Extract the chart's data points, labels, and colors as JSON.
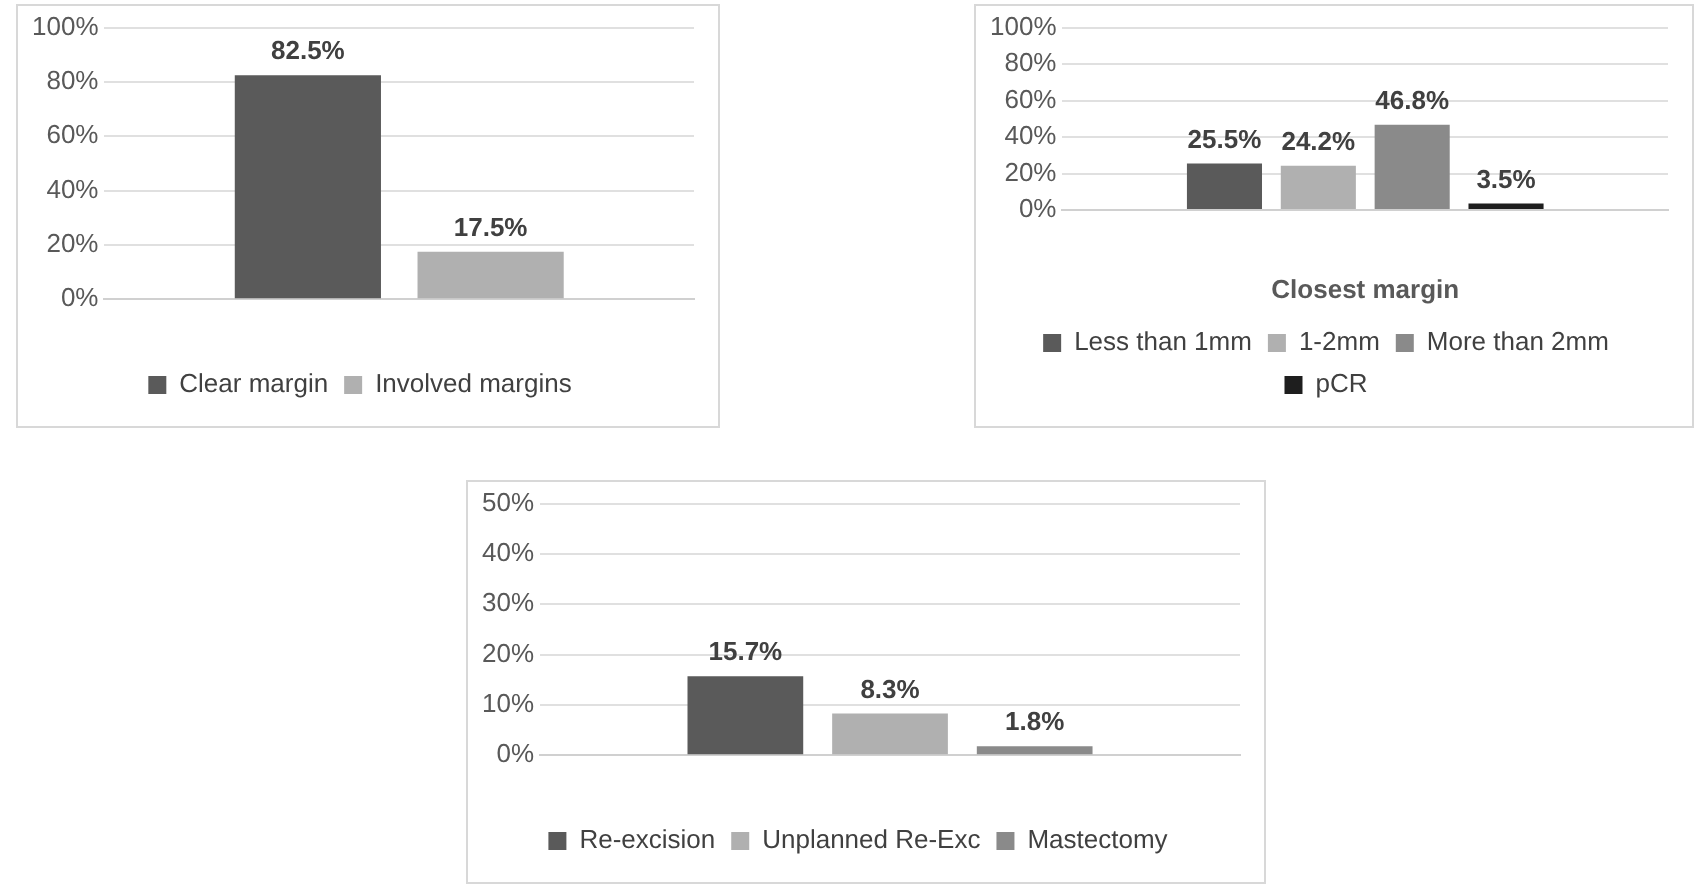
{
  "chart_data": [
    {
      "type": "bar",
      "categories": [
        null
      ],
      "series": [
        {
          "name": "Clear margin",
          "color": "#5a5a5a",
          "values": [
            82.5
          ],
          "value_labels": [
            "82.5%"
          ]
        },
        {
          "name": "Involved margins",
          "color": "#b0b0b0",
          "values": [
            17.5
          ],
          "value_labels": [
            "17.5%"
          ]
        }
      ],
      "ylim": [
        0,
        100
      ],
      "yticks": [
        {
          "value": 0,
          "label": "0%"
        },
        {
          "value": 20,
          "label": "20%"
        },
        {
          "value": 40,
          "label": "40%"
        },
        {
          "value": 60,
          "label": "60%"
        },
        {
          "value": 80,
          "label": "80%"
        },
        {
          "value": 100,
          "label": "100%"
        }
      ],
      "grid": "y",
      "legend": "bottom"
    },
    {
      "type": "bar",
      "categories": [
        null
      ],
      "xlabel": "Closest margin",
      "series": [
        {
          "name": "Less than 1mm",
          "color": "#5a5a5a",
          "values": [
            25.5
          ],
          "value_labels": [
            "25.5%"
          ]
        },
        {
          "name": "1-2mm",
          "color": "#b0b0b0",
          "values": [
            24.2
          ],
          "value_labels": [
            "24.2%"
          ]
        },
        {
          "name": "More than 2mm",
          "color": "#8a8a8a",
          "values": [
            46.8
          ],
          "value_labels": [
            "46.8%"
          ]
        },
        {
          "name": "pCR",
          "color": "#1e1e1e",
          "values": [
            3.5
          ],
          "value_labels": [
            "3.5%"
          ]
        }
      ],
      "ylim": [
        0,
        100
      ],
      "yticks": [
        {
          "value": 0,
          "label": "0%"
        },
        {
          "value": 20,
          "label": "20%"
        },
        {
          "value": 40,
          "label": "40%"
        },
        {
          "value": 60,
          "label": "60%"
        },
        {
          "value": 80,
          "label": "80%"
        },
        {
          "value": 100,
          "label": "100%"
        }
      ],
      "grid": "y",
      "legend": "bottom"
    },
    {
      "type": "bar",
      "categories": [
        null
      ],
      "series": [
        {
          "name": "Re-excision",
          "color": "#5a5a5a",
          "values": [
            15.7
          ],
          "value_labels": [
            "15.7%"
          ]
        },
        {
          "name": "Unplanned Re-Exc",
          "color": "#b0b0b0",
          "values": [
            8.3
          ],
          "value_labels": [
            "8.3%"
          ]
        },
        {
          "name": "Mastectomy",
          "color": "#8a8a8a",
          "values": [
            1.8
          ],
          "value_labels": [
            "1.8%"
          ]
        }
      ],
      "ylim": [
        0,
        50
      ],
      "yticks": [
        {
          "value": 0,
          "label": "0%"
        },
        {
          "value": 10,
          "label": "10%"
        },
        {
          "value": 20,
          "label": "20%"
        },
        {
          "value": 30,
          "label": "30%"
        },
        {
          "value": 40,
          "label": "40%"
        },
        {
          "value": 50,
          "label": "50%"
        }
      ],
      "grid": "y",
      "legend": "bottom"
    }
  ]
}
